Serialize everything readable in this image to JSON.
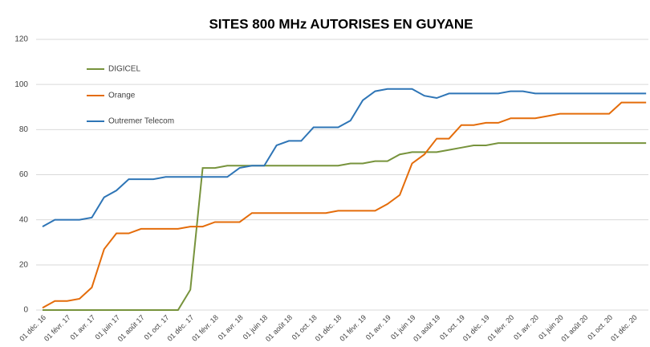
{
  "chart_data": {
    "type": "line",
    "title": "SITES 800 MHz AUTORISES EN GUYANE",
    "categories": [
      "01 déc. 16",
      null,
      "01 févr. 17",
      null,
      "01 avr. 17",
      null,
      "01 juin 17",
      null,
      "01 août 17",
      null,
      "01 oct. 17",
      null,
      "01 déc. 17",
      null,
      "01 févr. 18",
      null,
      "01 avr. 18",
      null,
      "01 juin 18",
      null,
      "01 août 18",
      null,
      "01 oct. 18",
      null,
      "01 déc. 18",
      null,
      "01 févr. 19",
      null,
      "01 avr. 19",
      null,
      "01 juin 19",
      null,
      "01 août 19",
      null,
      "01 oct. 19",
      null,
      "01 déc. 19",
      null,
      "01 févr. 20",
      null,
      "01 avr. 20",
      null,
      "01 juin 20",
      null,
      "01 août 20",
      null,
      "01 oct. 20",
      null,
      "01 déc. 20",
      null
    ],
    "series": [
      {
        "name": "DIGICEL",
        "color": "#77933c",
        "values": [
          0,
          0,
          0,
          0,
          0,
          0,
          0,
          0,
          0,
          0,
          0,
          0,
          9,
          63,
          63,
          64,
          64,
          64,
          64,
          64,
          64,
          64,
          64,
          64,
          64,
          65,
          65,
          66,
          66,
          69,
          70,
          70,
          70,
          71,
          72,
          73,
          73,
          74,
          74,
          74,
          74,
          74,
          74,
          74,
          74,
          74,
          74,
          74,
          74,
          74
        ]
      },
      {
        "name": "Orange",
        "color": "#e46c0a",
        "values": [
          1,
          4,
          4,
          5,
          10,
          27,
          34,
          34,
          36,
          36,
          36,
          36,
          37,
          37,
          39,
          39,
          39,
          43,
          43,
          43,
          43,
          43,
          43,
          43,
          44,
          44,
          44,
          44,
          47,
          51,
          65,
          69,
          76,
          76,
          82,
          82,
          83,
          83,
          85,
          85,
          85,
          86,
          87,
          87,
          87,
          87,
          87,
          92,
          92,
          92
        ]
      },
      {
        "name": "Outremer Telecom",
        "color": "#2e75b6",
        "values": [
          37,
          40,
          40,
          40,
          41,
          50,
          53,
          58,
          58,
          58,
          59,
          59,
          59,
          59,
          59,
          59,
          63,
          64,
          64,
          73,
          75,
          75,
          81,
          81,
          81,
          84,
          93,
          97,
          98,
          98,
          98,
          95,
          94,
          96,
          96,
          96,
          96,
          96,
          97,
          97,
          96,
          96,
          96,
          96,
          96,
          96,
          96,
          96,
          96,
          96
        ]
      }
    ],
    "ylim": [
      0,
      120
    ],
    "yticks": [
      0,
      20,
      40,
      60,
      80,
      100,
      120
    ],
    "grid": true
  }
}
